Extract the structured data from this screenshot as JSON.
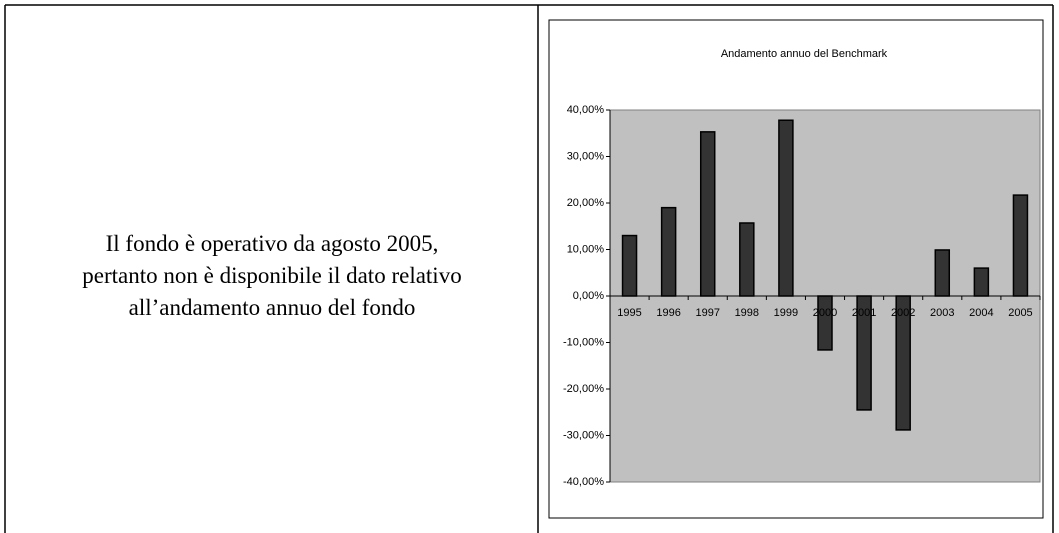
{
  "text": [
    "Il fondo è operativo da agosto 2005,",
    "pertanto non è disponibile il dato relativo",
    "all’andamento annuo del fondo"
  ],
  "chart_data": {
    "type": "bar",
    "title": "Andamento annuo del Benchmark",
    "categories": [
      "1995",
      "1996",
      "1997",
      "1998",
      "1999",
      "2000",
      "2001",
      "2002",
      "2003",
      "2004",
      "2005"
    ],
    "values": [
      13,
      19,
      35.3,
      15.7,
      37.8,
      -11.6,
      -24.5,
      -28.8,
      9.9,
      6,
      21.7
    ],
    "color": "#333333",
    "ylim": [
      -40,
      40
    ],
    "yticks": [
      {
        "value": -40,
        "label": "-40,00%"
      },
      {
        "value": -30,
        "label": "-30,00%"
      },
      {
        "value": -20,
        "label": "-20,00%"
      },
      {
        "value": -10,
        "label": "-10,00%"
      },
      {
        "value": 0,
        "label": "0,00%"
      },
      {
        "value": 10,
        "label": "10,00%"
      },
      {
        "value": 20,
        "label": "20,00%"
      },
      {
        "value": 30,
        "label": "30,00%"
      },
      {
        "value": 40,
        "label": "40,00%"
      }
    ]
  }
}
